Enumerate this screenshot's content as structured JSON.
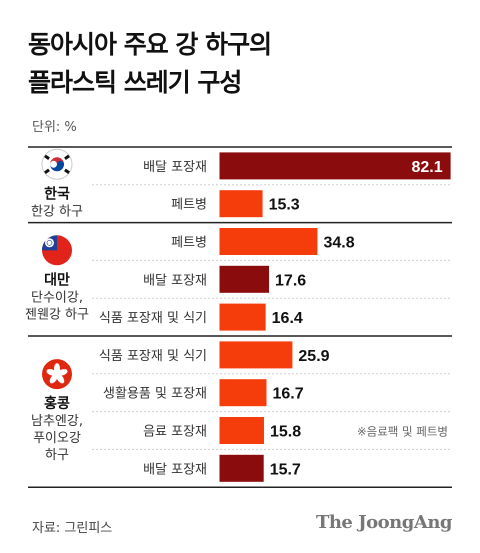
{
  "title_lines": [
    "동아시아 주요 강 하구의",
    "플라스틱 쓰레기 구성"
  ],
  "unit_text": "단위: %",
  "source_text": "자료: 그린피스",
  "logo_text": "The JoongAng",
  "colors": {
    "dark": "#8b0c0c",
    "bright": "#f53d0c",
    "separator": "#222222",
    "gridline": "#cfcfcf"
  },
  "chart_data": {
    "type": "bar",
    "orientation": "horizontal",
    "title": "동아시아 주요 강 하구의 플라스틱 쓰레기 구성",
    "unit": "%",
    "groups": [
      {
        "country": "한국",
        "river_lines": [
          "한강 하구"
        ],
        "flag": "south-korea-flag",
        "bars": [
          {
            "category": "배달 포장재",
            "value": 82.1,
            "color": "dark",
            "label_inside": true
          },
          {
            "category": "페트병",
            "value": 15.3,
            "color": "bright"
          }
        ]
      },
      {
        "country": "대만",
        "river_lines": [
          "단수이강,",
          "젠웬강 하구"
        ],
        "flag": "taiwan-flag",
        "bars": [
          {
            "category": "페트병",
            "value": 34.8,
            "color": "bright"
          },
          {
            "category": "배달 포장재",
            "value": 17.6,
            "color": "dark"
          },
          {
            "category": "식품 포장재 및 식기",
            "value": 16.4,
            "color": "bright"
          }
        ]
      },
      {
        "country": "홍콩",
        "river_lines": [
          "남추엔강,",
          "푸이오강",
          "하구"
        ],
        "flag": "hong-kong-flag",
        "bars": [
          {
            "category": "식품 포장재 및 식기",
            "value": 25.9,
            "color": "bright"
          },
          {
            "category": "생활용품 및 포장재",
            "value": 16.7,
            "color": "bright"
          },
          {
            "category": "음료 포장재",
            "value": 15.8,
            "color": "bright"
          },
          {
            "category": "배달 포장재",
            "value": 15.7,
            "color": "dark"
          }
        ]
      }
    ],
    "annotation": "※음료팩 및 페트병"
  }
}
